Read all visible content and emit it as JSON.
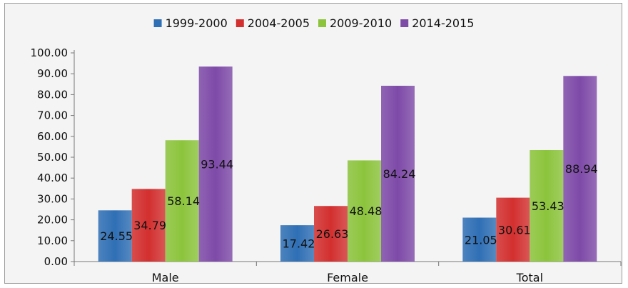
{
  "chart_data": {
    "type": "bar",
    "categories": [
      "Male",
      "Female",
      "Total"
    ],
    "series": [
      {
        "name": "1999-2000",
        "values": [
          24.55,
          17.42,
          21.05
        ],
        "color": "#2f6fb5"
      },
      {
        "name": "2004-2005",
        "values": [
          34.79,
          26.63,
          30.61
        ],
        "color": "#d32f2f"
      },
      {
        "name": "2009-2010",
        "values": [
          58.14,
          48.48,
          53.43
        ],
        "color": "#8cc43c"
      },
      {
        "name": "2014-2015",
        "values": [
          93.44,
          84.24,
          88.94
        ],
        "color": "#7e4aa8"
      }
    ],
    "ylim": [
      0,
      100
    ],
    "yticks": [
      "0.00",
      "10.00",
      "20.00",
      "30.00",
      "40.00",
      "50.00",
      "60.00",
      "70.00",
      "80.00",
      "90.00",
      "100.00"
    ],
    "legend_position": "top-center",
    "grid": false
  }
}
